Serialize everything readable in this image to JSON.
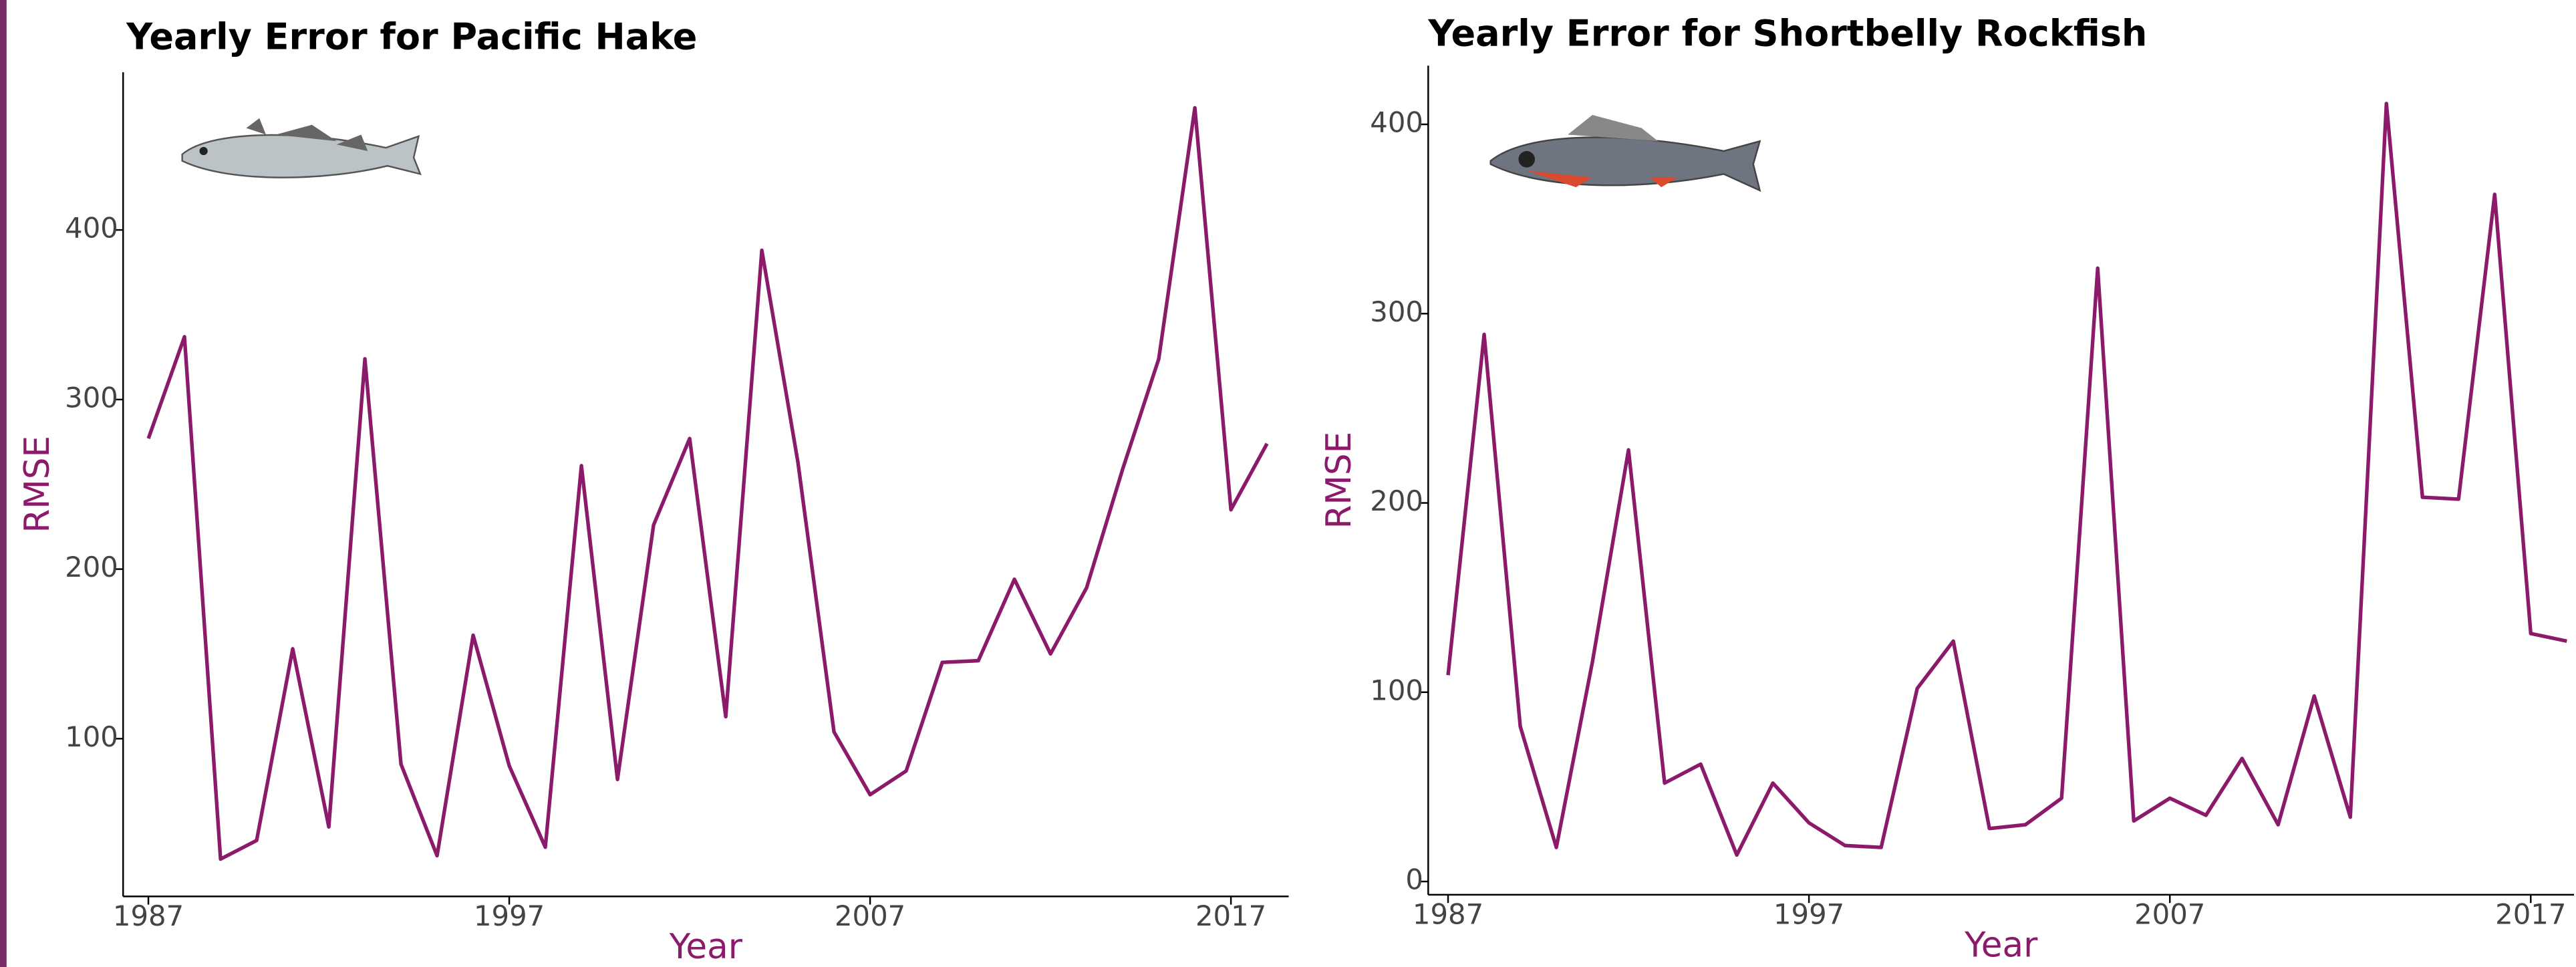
{
  "chart_data": [
    {
      "type": "line",
      "title": "Yearly Error for Pacific Hake",
      "x_label": "Year",
      "y_label": "RMSE",
      "x": [
        1987,
        1988,
        1989,
        1990,
        1991,
        1992,
        1993,
        1994,
        1995,
        1996,
        1997,
        1998,
        1999,
        2000,
        2001,
        2002,
        2003,
        2004,
        2005,
        2006,
        2007,
        2008,
        2009,
        2010,
        2011,
        2012,
        2013,
        2014,
        2015,
        2016,
        2017,
        2018
      ],
      "series": [
        {
          "name": "Pacific Hake",
          "color": "#8b1a6b",
          "values": [
            277,
            337,
            29,
            40,
            153,
            48,
            324,
            85,
            31,
            161,
            84,
            36,
            261,
            76,
            226,
            277,
            113,
            388,
            263,
            104,
            67,
            81,
            145,
            146,
            194,
            150,
            189,
            259,
            324,
            472,
            235,
            274
          ]
        }
      ],
      "xlim": [
        1986.3,
        2018.6
      ],
      "ylim": [
        7,
        493
      ],
      "xticks": [
        1987,
        1997,
        2007,
        2017
      ],
      "yticks": [
        100,
        200,
        300,
        400
      ]
    },
    {
      "type": "line",
      "title": "Yearly Error for Shortbelly Rockfish",
      "x_label": "Year",
      "y_label": "RMSE",
      "x": [
        1987,
        1988,
        1989,
        1990,
        1991,
        1992,
        1993,
        1994,
        1995,
        1996,
        1997,
        1998,
        1999,
        2000,
        2001,
        2002,
        2003,
        2004,
        2005,
        2006,
        2007,
        2008,
        2009,
        2010,
        2011,
        2012,
        2013,
        2014,
        2015,
        2016,
        2017,
        2018
      ],
      "series": [
        {
          "name": "Shortbelly Rockfish",
          "color": "#8b1a6b",
          "values": [
            109,
            289,
            82,
            18,
            116,
            228,
            52,
            62,
            14,
            52,
            31,
            19,
            18,
            102,
            127,
            28,
            30,
            44,
            324,
            32,
            44,
            35,
            65,
            30,
            98,
            34,
            411,
            203,
            202,
            363,
            131,
            127
          ]
        }
      ],
      "xlim": [
        1986.45,
        2018.2
      ],
      "ylim": [
        -7,
        431
      ],
      "xticks": [
        1987,
        1997,
        2007,
        2017
      ],
      "yticks": [
        0,
        100,
        200,
        300,
        400
      ]
    }
  ]
}
